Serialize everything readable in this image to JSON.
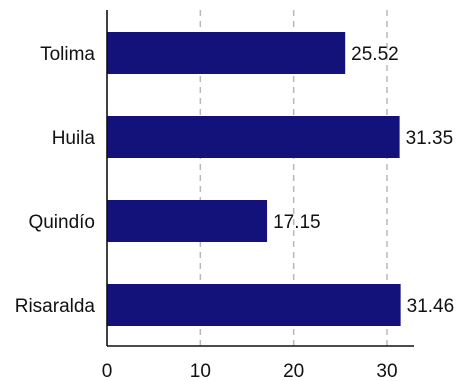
{
  "chart_data": {
    "type": "bar",
    "orientation": "horizontal",
    "title": "",
    "xlabel": "",
    "ylabel": "",
    "categories": [
      "Tolima",
      "Huila",
      "Quindío",
      "Risaralda"
    ],
    "values": [
      25.52,
      31.35,
      17.15,
      31.46
    ],
    "value_labels": [
      "25.52",
      "31.35",
      "17.15",
      "31.46"
    ],
    "xlim": [
      0,
      33
    ],
    "x_ticks": [
      0,
      10,
      20,
      30
    ],
    "x_tick_labels": [
      "0",
      "10",
      "20",
      "30"
    ],
    "grid": "vertical dashed",
    "legend": "none",
    "bar_color": "#12127a",
    "grid_color": "#b8b8b8",
    "axis_color": "#111111"
  }
}
